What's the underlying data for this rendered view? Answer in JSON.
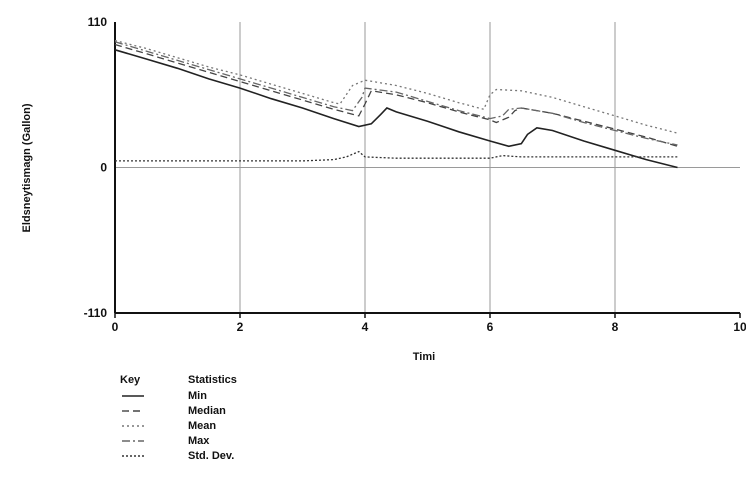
{
  "chart_data": {
    "type": "line",
    "xlabel": "Timi",
    "ylabel": "Eldsneytismagn (Gallon)",
    "xlim": [
      0,
      10
    ],
    "ylim": [
      -110,
      110
    ],
    "x_ticks": [
      "0",
      "2",
      "4",
      "6",
      "8",
      "10"
    ],
    "y_ticks": [
      "110",
      "0",
      "-110"
    ],
    "grid": true,
    "key": {
      "key_header": "Key",
      "stat_header": "Statistics"
    },
    "series": [
      {
        "name": "Min",
        "style": "solid",
        "color": "#222222",
        "points": [
          [
            0,
            89
          ],
          [
            0.5,
            82
          ],
          [
            1,
            75
          ],
          [
            1.5,
            67
          ],
          [
            2,
            60
          ],
          [
            2.5,
            52
          ],
          [
            3,
            45
          ],
          [
            3.5,
            37
          ],
          [
            3.9,
            31
          ],
          [
            4.1,
            33
          ],
          [
            4.25,
            40
          ],
          [
            4.35,
            45
          ],
          [
            4.5,
            42
          ],
          [
            5,
            35
          ],
          [
            5.5,
            27
          ],
          [
            6,
            20
          ],
          [
            6.3,
            16
          ],
          [
            6.5,
            18
          ],
          [
            6.6,
            25
          ],
          [
            6.75,
            30
          ],
          [
            7,
            28
          ],
          [
            7.5,
            20
          ],
          [
            8,
            13
          ],
          [
            8.5,
            6
          ],
          [
            9,
            0
          ]
        ]
      },
      {
        "name": "Median",
        "style": "dashed",
        "color": "#444444",
        "points": [
          [
            0,
            93
          ],
          [
            0.5,
            86
          ],
          [
            1,
            79
          ],
          [
            1.5,
            72
          ],
          [
            2,
            65
          ],
          [
            2.5,
            58
          ],
          [
            3,
            51
          ],
          [
            3.5,
            44
          ],
          [
            3.9,
            39
          ],
          [
            4,
            48
          ],
          [
            4.1,
            58
          ],
          [
            4.5,
            55
          ],
          [
            5,
            49
          ],
          [
            5.5,
            42
          ],
          [
            6,
            36
          ],
          [
            6.1,
            34
          ],
          [
            6.3,
            38
          ],
          [
            6.4,
            43
          ],
          [
            6.5,
            45
          ],
          [
            7,
            41
          ],
          [
            7.5,
            35
          ],
          [
            8,
            29
          ],
          [
            8.5,
            23
          ],
          [
            9,
            16
          ]
        ]
      },
      {
        "name": "Mean",
        "style": "dotted",
        "color": "#777777",
        "points": [
          [
            0,
            96
          ],
          [
            0.5,
            90
          ],
          [
            1,
            83
          ],
          [
            1.5,
            76
          ],
          [
            2,
            70
          ],
          [
            2.5,
            63
          ],
          [
            3,
            56
          ],
          [
            3.5,
            49
          ],
          [
            3.6,
            48
          ],
          [
            3.8,
            62
          ],
          [
            4,
            66
          ],
          [
            4.5,
            62
          ],
          [
            5,
            56
          ],
          [
            5.5,
            49
          ],
          [
            5.9,
            44
          ],
          [
            6,
            55
          ],
          [
            6.1,
            59
          ],
          [
            6.5,
            58
          ],
          [
            7,
            53
          ],
          [
            7.5,
            46
          ],
          [
            8,
            39
          ],
          [
            8.5,
            32
          ],
          [
            9,
            26
          ]
        ]
      },
      {
        "name": "Max",
        "style": "dashdot",
        "color": "#666666",
        "points": [
          [
            0,
            95
          ],
          [
            0.5,
            88
          ],
          [
            1,
            81
          ],
          [
            1.5,
            74
          ],
          [
            2,
            67
          ],
          [
            2.5,
            60
          ],
          [
            3,
            53
          ],
          [
            3.5,
            46
          ],
          [
            3.8,
            43
          ],
          [
            3.95,
            53
          ],
          [
            4,
            60
          ],
          [
            4.5,
            57
          ],
          [
            5,
            50
          ],
          [
            5.5,
            43
          ],
          [
            6,
            37
          ],
          [
            6.2,
            39
          ],
          [
            6.3,
            44
          ],
          [
            6.5,
            45
          ],
          [
            7,
            41
          ],
          [
            7.5,
            34
          ],
          [
            8,
            28
          ],
          [
            8.5,
            22
          ],
          [
            9,
            17
          ]
        ]
      },
      {
        "name": "Std. Dev.",
        "style": "densedot",
        "color": "#333333",
        "points": [
          [
            0,
            5
          ],
          [
            0.5,
            5
          ],
          [
            1,
            5
          ],
          [
            1.5,
            5
          ],
          [
            2,
            5
          ],
          [
            2.5,
            5
          ],
          [
            3,
            5
          ],
          [
            3.5,
            6
          ],
          [
            3.7,
            8
          ],
          [
            3.9,
            12
          ],
          [
            4,
            8
          ],
          [
            4.5,
            7
          ],
          [
            5,
            7
          ],
          [
            5.5,
            7
          ],
          [
            6,
            7
          ],
          [
            6.2,
            9
          ],
          [
            6.5,
            8
          ],
          [
            7,
            8
          ],
          [
            7.5,
            8
          ],
          [
            8,
            8
          ],
          [
            8.5,
            8
          ],
          [
            9,
            8
          ]
        ]
      }
    ]
  }
}
